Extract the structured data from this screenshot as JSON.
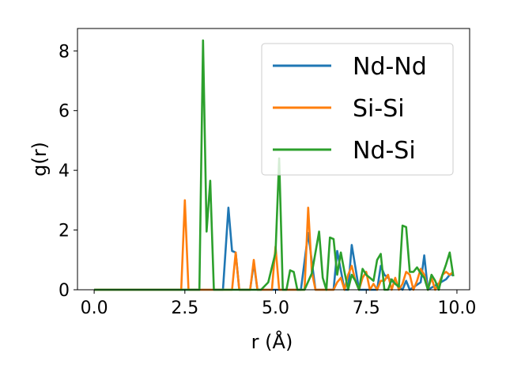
{
  "chart_data": {
    "type": "line",
    "xlabel": "r (Å)",
    "ylabel": "g(r)",
    "xlim": [
      -0.46,
      10.35
    ],
    "ylim": [
      0,
      8.75
    ],
    "xticks": [
      "0.0",
      "2.5",
      "5.0",
      "7.5",
      "10.0"
    ],
    "yticks": [
      "0",
      "2",
      "4",
      "6",
      "8"
    ],
    "grid": false,
    "legend_placement": "top-right",
    "series": [
      {
        "name": "Nd-Nd",
        "color": "#1f77b4",
        "x": [
          0.0,
          3.55,
          3.7,
          3.8,
          3.9,
          4.0,
          4.3,
          4.4,
          4.5,
          4.6,
          5.7,
          5.9,
          6.1,
          6.5,
          6.6,
          6.7,
          6.9,
          7.0,
          7.1,
          7.3,
          7.8,
          7.9,
          8.0,
          8.1,
          8.5,
          8.6,
          8.7,
          9.0,
          9.1,
          9.2,
          9.7,
          9.8,
          9.9
        ],
        "y": [
          0,
          0,
          2.75,
          1.3,
          1.25,
          0,
          0,
          0.9,
          0,
          0,
          0,
          1.9,
          0,
          0,
          0,
          1.3,
          0,
          0,
          1.5,
          0,
          0,
          0.8,
          0.5,
          0.4,
          0,
          0.3,
          0,
          0.25,
          1.15,
          0,
          0.35,
          0.5,
          0.5
        ]
      },
      {
        "name": "Si-Si",
        "color": "#ff7f0e",
        "x": [
          0.0,
          2.4,
          2.5,
          2.6,
          3.7,
          3.8,
          3.9,
          4.0,
          4.3,
          4.4,
          4.5,
          4.9,
          5.0,
          5.1,
          5.7,
          5.8,
          5.9,
          6.0,
          6.1,
          6.2,
          6.6,
          6.7,
          6.8,
          6.9,
          7.0,
          7.1,
          7.2,
          7.3,
          7.4,
          7.5,
          7.6,
          7.7,
          7.8,
          7.9,
          8.0,
          8.1,
          8.2,
          8.3,
          8.4,
          8.5,
          8.6,
          8.7,
          8.8,
          8.9,
          9.0,
          9.1,
          9.2,
          9.3,
          9.4,
          9.5,
          9.6,
          9.7,
          9.8,
          9.9
        ],
        "y": [
          0,
          0,
          3.0,
          0,
          0,
          0,
          1.25,
          0,
          0,
          1.0,
          0,
          0,
          1.45,
          0,
          0,
          0,
          2.75,
          0.6,
          0,
          0,
          0,
          0.25,
          0.4,
          0,
          0.5,
          0.8,
          0.3,
          0,
          0.4,
          0.6,
          0,
          0.2,
          0,
          0.3,
          0.3,
          0.5,
          0,
          0.4,
          0,
          0.2,
          0.6,
          0.5,
          0,
          0.3,
          0.7,
          0.5,
          0,
          0.4,
          0,
          0.2,
          0.5,
          0.6,
          0.5,
          0.6
        ]
      },
      {
        "name": "Nd-Si",
        "color": "#2ca02c",
        "x": [
          0.0,
          2.9,
          3.0,
          3.1,
          3.2,
          3.3,
          4.6,
          4.8,
          5.0,
          5.1,
          5.2,
          5.3,
          5.4,
          5.5,
          5.6,
          5.8,
          6.0,
          6.2,
          6.3,
          6.4,
          6.5,
          6.6,
          6.7,
          6.8,
          6.9,
          7.0,
          7.1,
          7.2,
          7.3,
          7.4,
          7.5,
          7.6,
          7.7,
          7.8,
          7.9,
          8.0,
          8.1,
          8.2,
          8.3,
          8.4,
          8.5,
          8.6,
          8.7,
          8.8,
          8.9,
          9.0,
          9.1,
          9.2,
          9.3,
          9.4,
          9.5,
          9.6,
          9.7,
          9.8,
          9.9
        ],
        "y": [
          0,
          0,
          8.35,
          1.95,
          3.65,
          0,
          0,
          0.25,
          1.25,
          4.4,
          0,
          0,
          0.65,
          0.6,
          0,
          0,
          0.55,
          1.95,
          0.4,
          0,
          1.75,
          1.7,
          0.5,
          1.25,
          0.6,
          0,
          0.5,
          0.3,
          0,
          0.7,
          0.5,
          0.4,
          0.3,
          1.0,
          1.2,
          0,
          0,
          0.35,
          0.2,
          0.1,
          2.15,
          2.1,
          0.6,
          0.6,
          0.75,
          0.55,
          0.4,
          0,
          0.5,
          0.3,
          0,
          0.5,
          0.85,
          1.25,
          0.45
        ]
      }
    ]
  }
}
